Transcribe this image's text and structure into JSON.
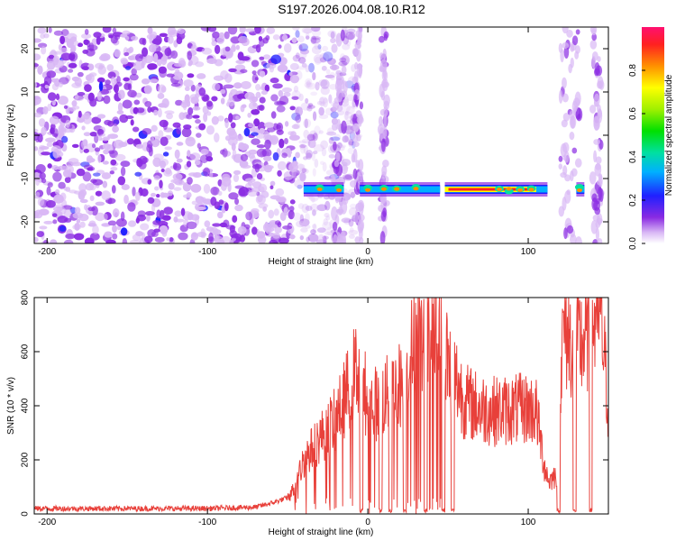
{
  "title": "S197.2026.004.08.10.R12",
  "chart_data": [
    {
      "type": "heatmap",
      "xlabel": "Height of straight line (km)",
      "ylabel": "Frequency (Hz)",
      "xlim": [
        -208,
        150
      ],
      "ylim": [
        -25,
        25
      ],
      "xticks": [
        -200,
        -100,
        0,
        100
      ],
      "yticks": [
        -20,
        -10,
        0,
        10,
        20
      ],
      "colorbar": {
        "label": "Normalized spectral amplitude",
        "range": [
          0,
          1
        ],
        "ticks": [
          0.0,
          0.2,
          0.4,
          0.6,
          0.8
        ],
        "tick_labels": [
          "0.0",
          "0.2",
          "0.4",
          "0.6",
          "0.8"
        ]
      },
      "noise_region": [
        -208,
        -45
      ],
      "signal_line": {
        "freq_hz": -12.5,
        "segments": [
          [
            -40,
            -15
          ],
          [
            -5,
            45
          ],
          [
            48,
            112
          ],
          [
            130,
            135
          ]
        ],
        "peak_range_km": [
          48,
          105
        ]
      }
    },
    {
      "type": "line",
      "xlabel": "Height of straight line (km)",
      "ylabel": "SNR (10 * v/v)",
      "xlim": [
        -208,
        150
      ],
      "ylim": [
        0,
        800
      ],
      "xticks": [
        -200,
        -100,
        0,
        100
      ],
      "yticks": [
        0,
        200,
        400,
        600,
        800
      ],
      "color": "#e8403a",
      "series": [
        {
          "name": "SNR",
          "x": [
            -208,
            -150,
            -100,
            -70,
            -60,
            -50,
            -45,
            -40,
            -30,
            -20,
            -15,
            -10,
            -5,
            0,
            5,
            10,
            15,
            20,
            25,
            30,
            35,
            40,
            45,
            50,
            55,
            60,
            70,
            80,
            90,
            100,
            105,
            110,
            113,
            118,
            122,
            125,
            130,
            135,
            140,
            145,
            150
          ],
          "y": [
            20,
            20,
            20,
            25,
            40,
            60,
            100,
            200,
            280,
            350,
            420,
            500,
            560,
            400,
            410,
            430,
            450,
            480,
            530,
            680,
            600,
            650,
            700,
            560,
            500,
            420,
            390,
            380,
            385,
            390,
            380,
            180,
            120,
            150,
            700,
            650,
            620,
            640,
            700,
            750,
            400
          ]
        }
      ]
    }
  ]
}
